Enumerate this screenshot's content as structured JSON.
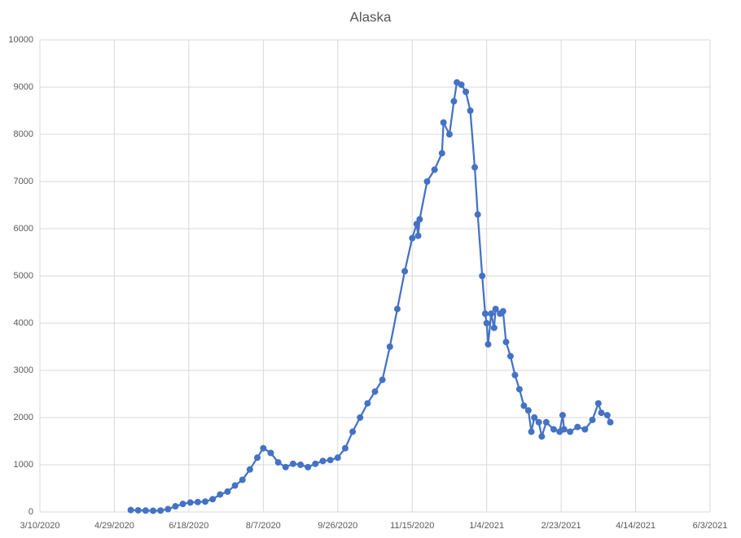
{
  "chart_data": {
    "type": "line",
    "title": "Alaska",
    "x": [
      "2020-05-10",
      "2020-05-15",
      "2020-05-20",
      "2020-05-25",
      "2020-05-30",
      "2020-06-04",
      "2020-06-09",
      "2020-06-14",
      "2020-06-19",
      "2020-06-24",
      "2020-06-29",
      "2020-07-04",
      "2020-07-09",
      "2020-07-14",
      "2020-07-19",
      "2020-07-24",
      "2020-07-29",
      "2020-08-03",
      "2020-08-07",
      "2020-08-12",
      "2020-08-17",
      "2020-08-22",
      "2020-08-27",
      "2020-09-01",
      "2020-09-06",
      "2020-09-11",
      "2020-09-16",
      "2020-09-21",
      "2020-09-26",
      "2020-10-01",
      "2020-10-06",
      "2020-10-11",
      "2020-10-16",
      "2020-10-21",
      "2020-10-26",
      "2020-10-31",
      "2020-11-05",
      "2020-11-10",
      "2020-11-15",
      "2020-11-18",
      "2020-11-19",
      "2020-11-20",
      "2020-11-25",
      "2020-11-30",
      "2020-12-05",
      "2020-12-06",
      "2020-12-10",
      "2020-12-13",
      "2020-12-15",
      "2020-12-18",
      "2020-12-21",
      "2020-12-24",
      "2020-12-27",
      "2020-12-29",
      "2021-01-01",
      "2021-01-03",
      "2021-01-04",
      "2021-01-05",
      "2021-01-07",
      "2021-01-09",
      "2021-01-10",
      "2021-01-13",
      "2021-01-15",
      "2021-01-17",
      "2021-01-20",
      "2021-01-23",
      "2021-01-26",
      "2021-01-29",
      "2021-02-01",
      "2021-02-03",
      "2021-02-05",
      "2021-02-08",
      "2021-02-10",
      "2021-02-13",
      "2021-02-18",
      "2021-02-22",
      "2021-02-24",
      "2021-02-25",
      "2021-03-01",
      "2021-03-06",
      "2021-03-11",
      "2021-03-16",
      "2021-03-20",
      "2021-03-22",
      "2021-03-26",
      "2021-03-28"
    ],
    "series": [
      {
        "name": "Alaska",
        "color": "#4472c4",
        "values": [
          40,
          35,
          30,
          25,
          30,
          60,
          120,
          170,
          200,
          210,
          220,
          270,
          370,
          430,
          560,
          680,
          900,
          1150,
          1350,
          1250,
          1050,
          950,
          1020,
          1000,
          950,
          1020,
          1080,
          1100,
          1150,
          1350,
          1700,
          2000,
          2300,
          2550,
          2800,
          3500,
          4300,
          5100,
          5800,
          6100,
          5850,
          6200,
          7000,
          7250,
          7600,
          8250,
          8000,
          8700,
          9100,
          9050,
          8900,
          8500,
          7300,
          6300,
          5000,
          4200,
          4000,
          3550,
          4200,
          3900,
          4300,
          4200,
          4250,
          3600,
          3300,
          2900,
          2600,
          2250,
          2150,
          1700,
          2000,
          1900,
          1600,
          1900,
          1750,
          1700,
          2050,
          1750,
          1700,
          1800,
          1750,
          1950,
          2300,
          2100,
          2050,
          1900
        ]
      }
    ],
    "xlim": [
      "2020-03-10",
      "2021-06-03"
    ],
    "xticks": [
      {
        "value": "2020-03-10",
        "label": "3/10/2020"
      },
      {
        "value": "2020-04-29",
        "label": "4/29/2020"
      },
      {
        "value": "2020-06-18",
        "label": "6/18/2020"
      },
      {
        "value": "2020-08-07",
        "label": "8/7/2020"
      },
      {
        "value": "2020-09-26",
        "label": "9/26/2020"
      },
      {
        "value": "2020-11-15",
        "label": "11/15/2020"
      },
      {
        "value": "2021-01-04",
        "label": "1/4/2021"
      },
      {
        "value": "2021-02-23",
        "label": "2/23/2021"
      },
      {
        "value": "2021-04-14",
        "label": "4/14/2021"
      },
      {
        "value": "2021-06-03",
        "label": "6/3/2021"
      }
    ],
    "ylim": [
      0,
      10000
    ],
    "yticks": [
      0,
      1000,
      2000,
      3000,
      4000,
      5000,
      6000,
      7000,
      8000,
      9000,
      10000
    ],
    "grid": true
  }
}
